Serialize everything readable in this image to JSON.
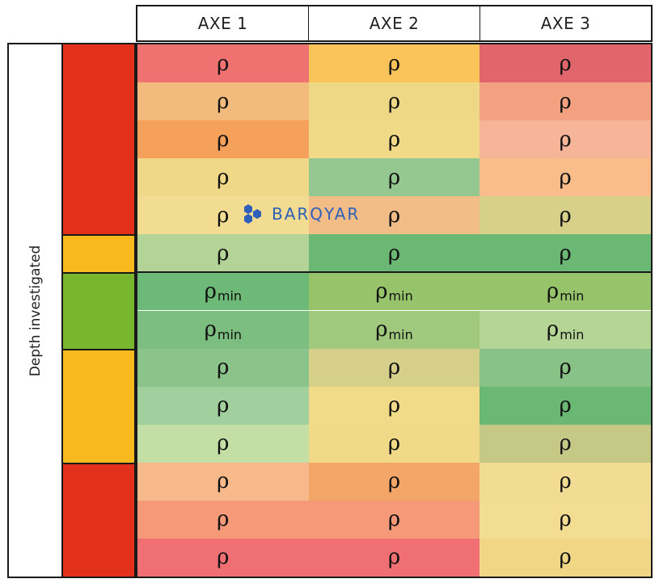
{
  "header": {
    "columns": [
      "AXE 1",
      "AXE 2",
      "AXE 3"
    ]
  },
  "axis_label": "Depth investigated",
  "zones": [
    {
      "color": "#e3301a",
      "rows": 5
    },
    {
      "color": "#f8b91f",
      "rows": 1
    },
    {
      "color": "#77b62d",
      "rows": 2
    },
    {
      "color": "#f8b91f",
      "rows": 3
    },
    {
      "color": "#e3301a",
      "rows": 3
    }
  ],
  "rows": [
    {
      "cells": [
        {
          "symbol": "ρ",
          "sub": "",
          "color": "#ef7170"
        },
        {
          "symbol": "ρ",
          "sub": "",
          "color": "#fac45a"
        },
        {
          "symbol": "ρ",
          "sub": "",
          "color": "#e0666b"
        }
      ]
    },
    {
      "cells": [
        {
          "symbol": "ρ",
          "sub": "",
          "color": "#f2bb7d"
        },
        {
          "symbol": "ρ",
          "sub": "",
          "color": "#efd885"
        },
        {
          "symbol": "ρ",
          "sub": "",
          "color": "#f4a181"
        }
      ]
    },
    {
      "cells": [
        {
          "symbol": "ρ",
          "sub": "",
          "color": "#f5a05b"
        },
        {
          "symbol": "ρ",
          "sub": "",
          "color": "#f0da87"
        },
        {
          "symbol": "ρ",
          "sub": "",
          "color": "#f6b498"
        }
      ]
    },
    {
      "cells": [
        {
          "symbol": "ρ",
          "sub": "",
          "color": "#f0d889"
        },
        {
          "symbol": "ρ",
          "sub": "",
          "color": "#95c790"
        },
        {
          "symbol": "ρ",
          "sub": "",
          "color": "#f8bd8a"
        }
      ]
    },
    {
      "cells": [
        {
          "symbol": "ρ",
          "sub": "",
          "color": "#f2dc91"
        },
        {
          "symbol": "ρ",
          "sub": "",
          "color": "#f2bc86"
        },
        {
          "symbol": "ρ",
          "sub": "",
          "color": "#d7d088"
        }
      ]
    },
    {
      "cells": [
        {
          "symbol": "ρ",
          "sub": "",
          "color": "#b3d496"
        },
        {
          "symbol": "ρ",
          "sub": "",
          "color": "#6ab874"
        },
        {
          "symbol": "ρ",
          "sub": "",
          "color": "#6ab874"
        }
      ]
    },
    {
      "cells": [
        {
          "symbol": "ρ",
          "sub": "min",
          "color": "#6db978"
        },
        {
          "symbol": "ρ",
          "sub": "min",
          "color": "#97c46b"
        },
        {
          "symbol": "ρ",
          "sub": "min",
          "color": "#97c46b"
        }
      ]
    },
    {
      "cells": [
        {
          "symbol": "ρ",
          "sub": "min",
          "color": "#7cbd80"
        },
        {
          "symbol": "ρ",
          "sub": "min",
          "color": "#a1c97e"
        },
        {
          "symbol": "ρ",
          "sub": "min",
          "color": "#b5d597"
        }
      ]
    },
    {
      "cells": [
        {
          "symbol": "ρ",
          "sub": "",
          "color": "#8bc38b"
        },
        {
          "symbol": "ρ",
          "sub": "",
          "color": "#d6cf8a"
        },
        {
          "symbol": "ρ",
          "sub": "",
          "color": "#88c287"
        }
      ]
    },
    {
      "cells": [
        {
          "symbol": "ρ",
          "sub": "",
          "color": "#a1d09e"
        },
        {
          "symbol": "ρ",
          "sub": "",
          "color": "#f1da88"
        },
        {
          "symbol": "ρ",
          "sub": "",
          "color": "#6ab874"
        }
      ]
    },
    {
      "cells": [
        {
          "symbol": "ρ",
          "sub": "",
          "color": "#c3dfa5"
        },
        {
          "symbol": "ρ",
          "sub": "",
          "color": "#f0d987"
        },
        {
          "symbol": "ρ",
          "sub": "",
          "color": "#c6c886"
        }
      ]
    },
    {
      "cells": [
        {
          "symbol": "ρ",
          "sub": "",
          "color": "#f7b98a"
        },
        {
          "symbol": "ρ",
          "sub": "",
          "color": "#f4a668"
        },
        {
          "symbol": "ρ",
          "sub": "",
          "color": "#f2dc93"
        }
      ]
    },
    {
      "cells": [
        {
          "symbol": "ρ",
          "sub": "",
          "color": "#f59979"
        },
        {
          "symbol": "ρ",
          "sub": "",
          "color": "#f59979"
        },
        {
          "symbol": "ρ",
          "sub": "",
          "color": "#f3dd93"
        }
      ]
    },
    {
      "cells": [
        {
          "symbol": "ρ",
          "sub": "",
          "color": "#ef6f72"
        },
        {
          "symbol": "ρ",
          "sub": "",
          "color": "#ef6f72"
        },
        {
          "symbol": "ρ",
          "sub": "",
          "color": "#f1d785"
        }
      ]
    }
  ],
  "dividers_after_rows": [
    6
  ],
  "watermark": {
    "icon": "hexagon-cluster-icon",
    "text": "BARQYAR",
    "color": "#2f5fb8"
  }
}
